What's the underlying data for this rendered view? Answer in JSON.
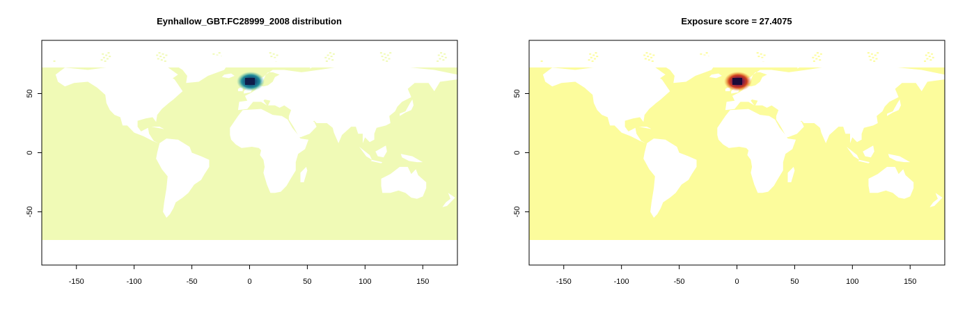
{
  "panels": [
    {
      "title": "Eynhallow_GBT.FC28999_2008 distribution",
      "ocean_color": "#f0fab6",
      "hotspot_colors": [
        "#0f1c4a",
        "#14507a",
        "#1f8a9a",
        "#66c2a5"
      ],
      "x_ticks": [
        "-150",
        "-100",
        "-50",
        "0",
        "50",
        "100",
        "150"
      ],
      "y_ticks": [
        "-50",
        "0",
        "50"
      ]
    },
    {
      "title": "Exposure score = 27.4075",
      "ocean_color": "#fcfc9c",
      "hotspot_colors": [
        "#1a0b3a",
        "#7a1a4a",
        "#d0401e",
        "#f08a1c"
      ],
      "x_ticks": [
        "-150",
        "-100",
        "-50",
        "0",
        "50",
        "100",
        "150"
      ],
      "y_ticks": [
        "-50",
        "0",
        "50"
      ]
    }
  ],
  "chart_data": [
    {
      "type": "heatmap",
      "title": "Eynhallow_GBT.FC28999_2008 distribution",
      "xlim": [
        -180,
        180
      ],
      "ylim": [
        -95,
        95
      ],
      "x_ticks": [
        -150,
        -100,
        -50,
        0,
        50,
        100,
        150
      ],
      "y_ticks": [
        -50,
        0,
        50
      ],
      "hotspot": {
        "lon": 0,
        "lat": 62
      },
      "colormap": "yellow-green-blue"
    },
    {
      "type": "heatmap",
      "title": "Exposure score = 27.4075",
      "xlim": [
        -180,
        180
      ],
      "ylim": [
        -95,
        95
      ],
      "x_ticks": [
        -150,
        -100,
        -50,
        0,
        50,
        100,
        150
      ],
      "y_ticks": [
        -50,
        0,
        50
      ],
      "hotspot": {
        "lon": 0,
        "lat": 62
      },
      "colormap": "yellow-orange-purple"
    }
  ]
}
